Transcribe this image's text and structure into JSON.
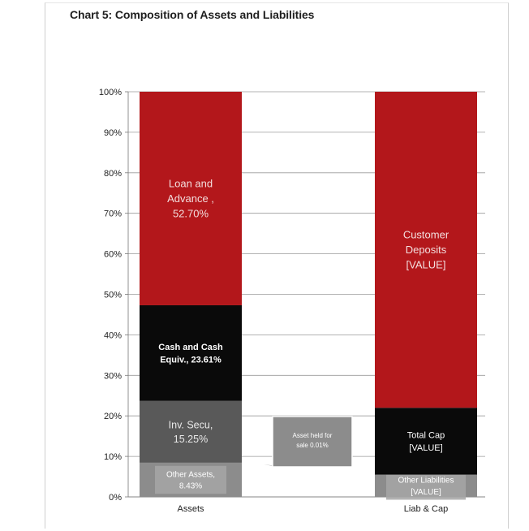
{
  "chart_data": {
    "type": "bar",
    "stacked": true,
    "title": "Chart 5: Composition of Assets and Liabilities",
    "categories": [
      "Assets",
      "Liab & Cap"
    ],
    "ylim": [
      0,
      100
    ],
    "yticks": [
      "0%",
      "10%",
      "20%",
      "30%",
      "40%",
      "50%",
      "60%",
      "70%",
      "80%",
      "90%",
      "100%"
    ],
    "grid": true,
    "series": [
      {
        "category": "Assets",
        "segments": [
          {
            "name": "Other Assets",
            "value": 8.43,
            "color": "#8c8c8c",
            "label_lines": [
              "Other Assets,",
              "8.43%"
            ]
          },
          {
            "name": "Asset held for sale",
            "value": 0.01,
            "color": "#8c8c8c",
            "label_lines": []
          },
          {
            "name": "Inv. Secu",
            "value": 15.25,
            "color": "#595959",
            "label_lines": [
              "Inv. Secu,",
              "15.25%"
            ]
          },
          {
            "name": "Cash and Cash Equiv.",
            "value": 23.61,
            "color": "#0a0a0a",
            "label_lines": [
              "Cash and Cash",
              "Equiv., 23.61%"
            ]
          },
          {
            "name": "Loan and Advance",
            "value": 52.7,
            "color": "#b3171b",
            "label_lines": [
              "Loan and",
              "Advance ,",
              "52.70%"
            ]
          }
        ]
      },
      {
        "category": "Liab & Cap",
        "segments": [
          {
            "name": "Other Liabilities",
            "value": 5.5,
            "color": "#8c8c8c",
            "label_lines": [
              "Other Liabilities",
              "[VALUE]"
            ]
          },
          {
            "name": "Total Cap",
            "value": 16.5,
            "color": "#0a0a0a",
            "label_lines": [
              "Total Cap",
              "[VALUE]"
            ]
          },
          {
            "name": "Customer Deposits",
            "value": 78.0,
            "color": "#b3171b",
            "label_lines": [
              "Customer",
              "Deposits",
              "[VALUE]"
            ]
          }
        ]
      }
    ],
    "callout": {
      "lines": [
        "Asset held for",
        "sale 0.01%"
      ],
      "color": "#8c8c8c"
    }
  }
}
